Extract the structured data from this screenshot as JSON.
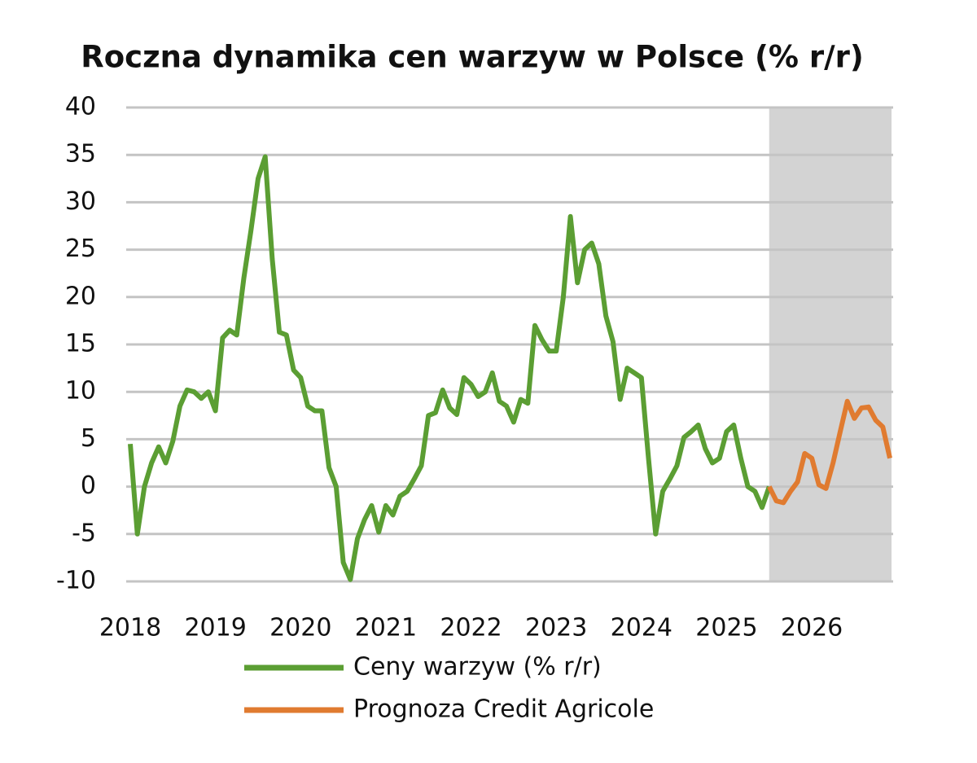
{
  "chart_data": {
    "type": "line",
    "title": "Roczna dynamika cen warzyw w Polsce (% r/r)",
    "categories": [
      "2018",
      null,
      null,
      null,
      null,
      null,
      null,
      null,
      null,
      null,
      null,
      null,
      "2019",
      null,
      null,
      null,
      null,
      null,
      null,
      null,
      null,
      null,
      null,
      null,
      "2020",
      null,
      null,
      null,
      null,
      null,
      null,
      null,
      null,
      null,
      null,
      null,
      "2021",
      null,
      null,
      null,
      null,
      null,
      null,
      null,
      null,
      null,
      null,
      null,
      "2022",
      null,
      null,
      null,
      null,
      null,
      null,
      null,
      null,
      null,
      null,
      null,
      "2023",
      null,
      null,
      null,
      null,
      null,
      null,
      null,
      null,
      null,
      null,
      null,
      "2024",
      null,
      null,
      null,
      null,
      null,
      null,
      null,
      null,
      null,
      null,
      null,
      "2025",
      null,
      null,
      null,
      null,
      null,
      null,
      null,
      null,
      null,
      null,
      null,
      "2026",
      null,
      null,
      null,
      null,
      null,
      null,
      null,
      null,
      null,
      null,
      null
    ],
    "series": [
      {
        "name": "Ceny warzyw (% r/r)",
        "color": "#5b9e33",
        "values": [
          4.5,
          -5,
          0,
          2.5,
          4.2,
          2.5,
          4.8,
          8.5,
          10.2,
          10,
          9.3,
          10,
          8,
          15.7,
          16.5,
          16,
          22,
          27,
          32.5,
          34.8,
          24,
          16.3,
          16,
          12.3,
          11.5,
          8.5,
          8,
          8,
          2,
          0,
          -8,
          -9.8,
          -5.5,
          -3.5,
          -2,
          -4.8,
          -2,
          -3,
          -1,
          -0.5,
          0.8,
          2.2,
          7.5,
          7.8,
          10.2,
          8.3,
          7.6,
          11.5,
          10.8,
          9.5,
          10,
          12,
          9,
          8.5,
          6.8,
          9.2,
          8.8,
          17,
          15.5,
          14.3,
          14.3,
          20,
          28.5,
          21.5,
          25,
          25.7,
          23.5,
          18,
          15.3,
          9.2,
          12.5,
          12,
          11.5,
          3,
          -5,
          -0.5,
          0.8,
          2.2,
          5.2,
          5.8,
          6.5,
          4,
          2.5,
          3,
          5.8,
          6.5,
          3,
          0,
          -0.5,
          -2.2,
          0,
          null,
          null,
          null,
          null,
          null,
          null,
          null,
          null,
          null,
          null,
          null,
          null,
          null,
          null,
          null,
          null,
          null
        ]
      },
      {
        "name": "Prognoza Credit Agricole",
        "color": "#e07b30",
        "values": [
          null,
          null,
          null,
          null,
          null,
          null,
          null,
          null,
          null,
          null,
          null,
          null,
          null,
          null,
          null,
          null,
          null,
          null,
          null,
          null,
          null,
          null,
          null,
          null,
          null,
          null,
          null,
          null,
          null,
          null,
          null,
          null,
          null,
          null,
          null,
          null,
          null,
          null,
          null,
          null,
          null,
          null,
          null,
          null,
          null,
          null,
          null,
          null,
          null,
          null,
          null,
          null,
          null,
          null,
          null,
          null,
          null,
          null,
          null,
          null,
          null,
          null,
          null,
          null,
          null,
          null,
          null,
          null,
          null,
          null,
          null,
          null,
          null,
          null,
          null,
          null,
          null,
          null,
          null,
          null,
          null,
          null,
          null,
          null,
          null,
          null,
          null,
          null,
          null,
          null,
          0,
          -1.5,
          -1.7,
          -0.5,
          0.5,
          3.5,
          3,
          0.2,
          -0.2,
          2.5,
          5.8,
          9,
          7.2,
          8.3,
          8.4,
          7,
          6.3,
          3
        ]
      }
    ],
    "ylim": [
      -10,
      40
    ],
    "yticks": [
      -10,
      -5,
      0,
      5,
      10,
      15,
      20,
      25,
      30,
      35,
      40
    ],
    "grid": true
  }
}
